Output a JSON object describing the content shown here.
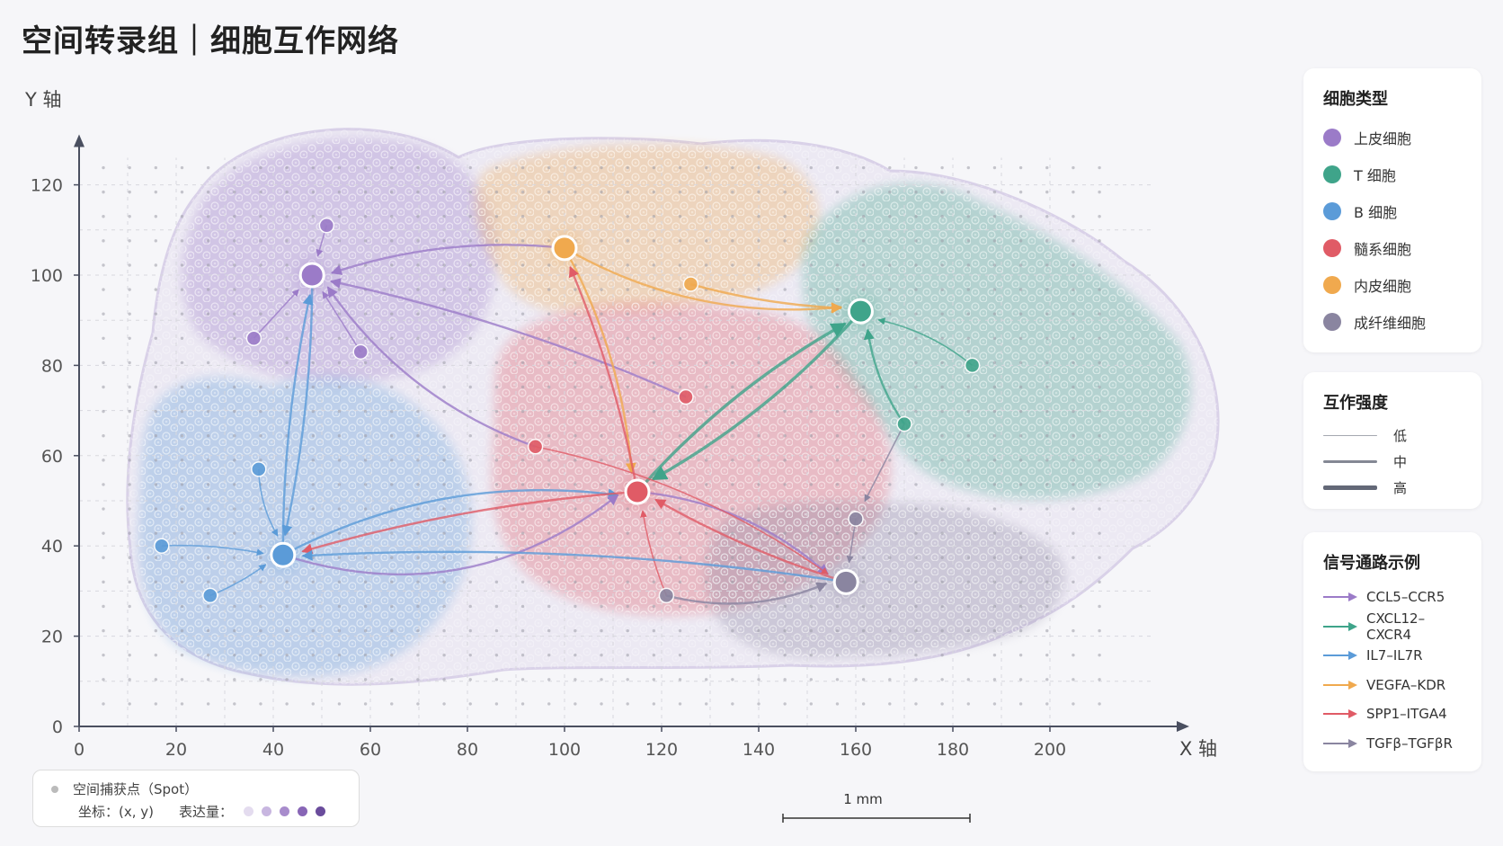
{
  "title": "空间转录组｜细胞互作网络",
  "chart_data": {
    "type": "scatter",
    "xlabel": "X 轴",
    "ylabel": "Y 轴",
    "xlim": [
      0,
      225
    ],
    "ylim": [
      0,
      128
    ],
    "xticks": [
      0,
      20,
      40,
      60,
      80,
      100,
      120,
      140,
      160,
      180,
      200
    ],
    "yticks": [
      0,
      20,
      40,
      60,
      80,
      100,
      120
    ],
    "grid": true,
    "legend_placement": "right",
    "cell_types": [
      {
        "name": "上皮细胞",
        "color": "#9b7bc8"
      },
      {
        "name": "T 细胞",
        "color": "#3fa48a"
      },
      {
        "name": "B 细胞",
        "color": "#5b9bd8"
      },
      {
        "name": "髓系细胞",
        "color": "#e05b66"
      },
      {
        "name": "内皮细胞",
        "color": "#f0a94e"
      },
      {
        "name": "成纤维细胞",
        "color": "#8a85a0"
      }
    ],
    "hubs": [
      {
        "type": 0,
        "x": 48,
        "y": 100
      },
      {
        "type": 4,
        "x": 100,
        "y": 106
      },
      {
        "type": 1,
        "x": 161,
        "y": 92
      },
      {
        "type": 3,
        "x": 115,
        "y": 52
      },
      {
        "type": 2,
        "x": 42,
        "y": 38
      },
      {
        "type": 5,
        "x": 158,
        "y": 32
      }
    ],
    "spots": [
      {
        "type": 0,
        "x": 51,
        "y": 111
      },
      {
        "type": 0,
        "x": 36,
        "y": 86
      },
      {
        "type": 0,
        "x": 58,
        "y": 83
      },
      {
        "type": 4,
        "x": 126,
        "y": 98
      },
      {
        "type": 1,
        "x": 184,
        "y": 80
      },
      {
        "type": 1,
        "x": 170,
        "y": 67
      },
      {
        "type": 3,
        "x": 125,
        "y": 73
      },
      {
        "type": 3,
        "x": 94,
        "y": 62
      },
      {
        "type": 2,
        "x": 37,
        "y": 57
      },
      {
        "type": 2,
        "x": 17,
        "y": 40
      },
      {
        "type": 2,
        "x": 27,
        "y": 29
      },
      {
        "type": 5,
        "x": 121,
        "y": 29
      },
      {
        "type": 5,
        "x": 160,
        "y": 46
      }
    ],
    "interactions": [
      {
        "from": [
          100,
          106
        ],
        "to": [
          48,
          100
        ],
        "pathway": 0,
        "strength": 1,
        "bend": 0.1
      },
      {
        "from": [
          51,
          111
        ],
        "to": [
          48,
          100
        ],
        "pathway": 0,
        "strength": 0,
        "bend": 0
      },
      {
        "from": [
          36,
          86
        ],
        "to": [
          48,
          100
        ],
        "pathway": 0,
        "strength": 0,
        "bend": 0
      },
      {
        "from": [
          58,
          83
        ],
        "to": [
          48,
          100
        ],
        "pathway": 0,
        "strength": 0,
        "bend": 0
      },
      {
        "from": [
          94,
          62
        ],
        "to": [
          48,
          100
        ],
        "pathway": 0,
        "strength": 1,
        "bend": -0.15
      },
      {
        "from": [
          125,
          73
        ],
        "to": [
          48,
          100
        ],
        "pathway": 0,
        "strength": 1,
        "bend": 0.05
      },
      {
        "from": [
          42,
          38
        ],
        "to": [
          48,
          100
        ],
        "pathway": 2,
        "strength": 1,
        "bend": -0.05
      },
      {
        "from": [
          48,
          100
        ],
        "to": [
          42,
          38
        ],
        "pathway": 2,
        "strength": 1,
        "bend": -0.05
      },
      {
        "from": [
          100,
          106
        ],
        "to": [
          161,
          92
        ],
        "pathway": 3,
        "strength": 1,
        "bend": 0.15
      },
      {
        "from": [
          126,
          98
        ],
        "to": [
          161,
          92
        ],
        "pathway": 3,
        "strength": 1,
        "bend": 0.05
      },
      {
        "from": [
          100,
          106
        ],
        "to": [
          115,
          52
        ],
        "pathway": 3,
        "strength": 1,
        "bend": -0.1
      },
      {
        "from": [
          115,
          52
        ],
        "to": [
          100,
          106
        ],
        "pathway": 4,
        "strength": 1,
        "bend": 0.05
      },
      {
        "from": [
          115,
          52
        ],
        "to": [
          161,
          92
        ],
        "pathway": 1,
        "strength": 2,
        "bend": -0.08
      },
      {
        "from": [
          161,
          92
        ],
        "to": [
          115,
          52
        ],
        "pathway": 1,
        "strength": 2,
        "bend": -0.08
      },
      {
        "from": [
          184,
          80
        ],
        "to": [
          161,
          92
        ],
        "pathway": 1,
        "strength": 0,
        "bend": 0.1
      },
      {
        "from": [
          170,
          67
        ],
        "to": [
          161,
          92
        ],
        "pathway": 1,
        "strength": 1,
        "bend": -0.1
      },
      {
        "from": [
          170,
          67
        ],
        "to": [
          160,
          46
        ],
        "pathway": 5,
        "strength": 0,
        "bend": 0
      },
      {
        "from": [
          42,
          38
        ],
        "to": [
          115,
          52
        ],
        "pathway": 2,
        "strength": 1,
        "bend": -0.15
      },
      {
        "from": [
          115,
          52
        ],
        "to": [
          42,
          38
        ],
        "pathway": 4,
        "strength": 1,
        "bend": 0.05
      },
      {
        "from": [
          42,
          38
        ],
        "to": [
          115,
          52
        ],
        "pathway": 0,
        "strength": 1,
        "bend": 0.25
      },
      {
        "from": [
          37,
          57
        ],
        "to": [
          42,
          38
        ],
        "pathway": 2,
        "strength": 0,
        "bend": 0.1
      },
      {
        "from": [
          17,
          40
        ],
        "to": [
          42,
          38
        ],
        "pathway": 2,
        "strength": 0,
        "bend": -0.05
      },
      {
        "from": [
          27,
          29
        ],
        "to": [
          42,
          38
        ],
        "pathway": 2,
        "strength": 0,
        "bend": 0.05
      },
      {
        "from": [
          115,
          52
        ],
        "to": [
          158,
          32
        ],
        "pathway": 0,
        "strength": 1,
        "bend": -0.15
      },
      {
        "from": [
          158,
          32
        ],
        "to": [
          115,
          52
        ],
        "pathway": 4,
        "strength": 1,
        "bend": -0.05
      },
      {
        "from": [
          121,
          29
        ],
        "to": [
          158,
          32
        ],
        "pathway": 5,
        "strength": 1,
        "bend": 0.15
      },
      {
        "from": [
          94,
          62
        ],
        "to": [
          158,
          32
        ],
        "pathway": 4,
        "strength": 0,
        "bend": -0.1
      },
      {
        "from": [
          121,
          29
        ],
        "to": [
          115,
          52
        ],
        "pathway": 4,
        "strength": 0,
        "bend": -0.05
      },
      {
        "from": [
          158,
          32
        ],
        "to": [
          42,
          38
        ],
        "pathway": 2,
        "strength": 1,
        "bend": 0.05
      },
      {
        "from": [
          160,
          46
        ],
        "to": [
          158,
          32
        ],
        "pathway": 5,
        "strength": 0,
        "bend": 0
      }
    ],
    "strength_legend": {
      "title": "互作强度",
      "levels": [
        "低",
        "中",
        "高"
      ]
    },
    "pathway_legend": {
      "title": "信号通路示例",
      "items": [
        {
          "name": "CCL5–CCR5",
          "color": "#9b7bc8"
        },
        {
          "name": "CXCL12–CXCR4",
          "color": "#3fa48a"
        },
        {
          "name": "IL7–IL7R",
          "color": "#5b9bd8"
        },
        {
          "name": "VEGFA–KDR",
          "color": "#f0a94e"
        },
        {
          "name": "SPP1–ITGA4",
          "color": "#e05b66"
        },
        {
          "name": "TGFβ–TGFβR",
          "color": "#8a85a0"
        }
      ]
    }
  },
  "legend_cell_title": "细胞类型",
  "spot_legend": {
    "spot_label": "空间捕获点（Spot）",
    "coord_label": "坐标：(x, y)",
    "expression_label": "表达量：",
    "expression_colors": [
      "#e4dcef",
      "#c8b6e0",
      "#a88ccc",
      "#8866b6",
      "#6a4c9c"
    ]
  },
  "scale_bar": {
    "label": "1 mm"
  }
}
